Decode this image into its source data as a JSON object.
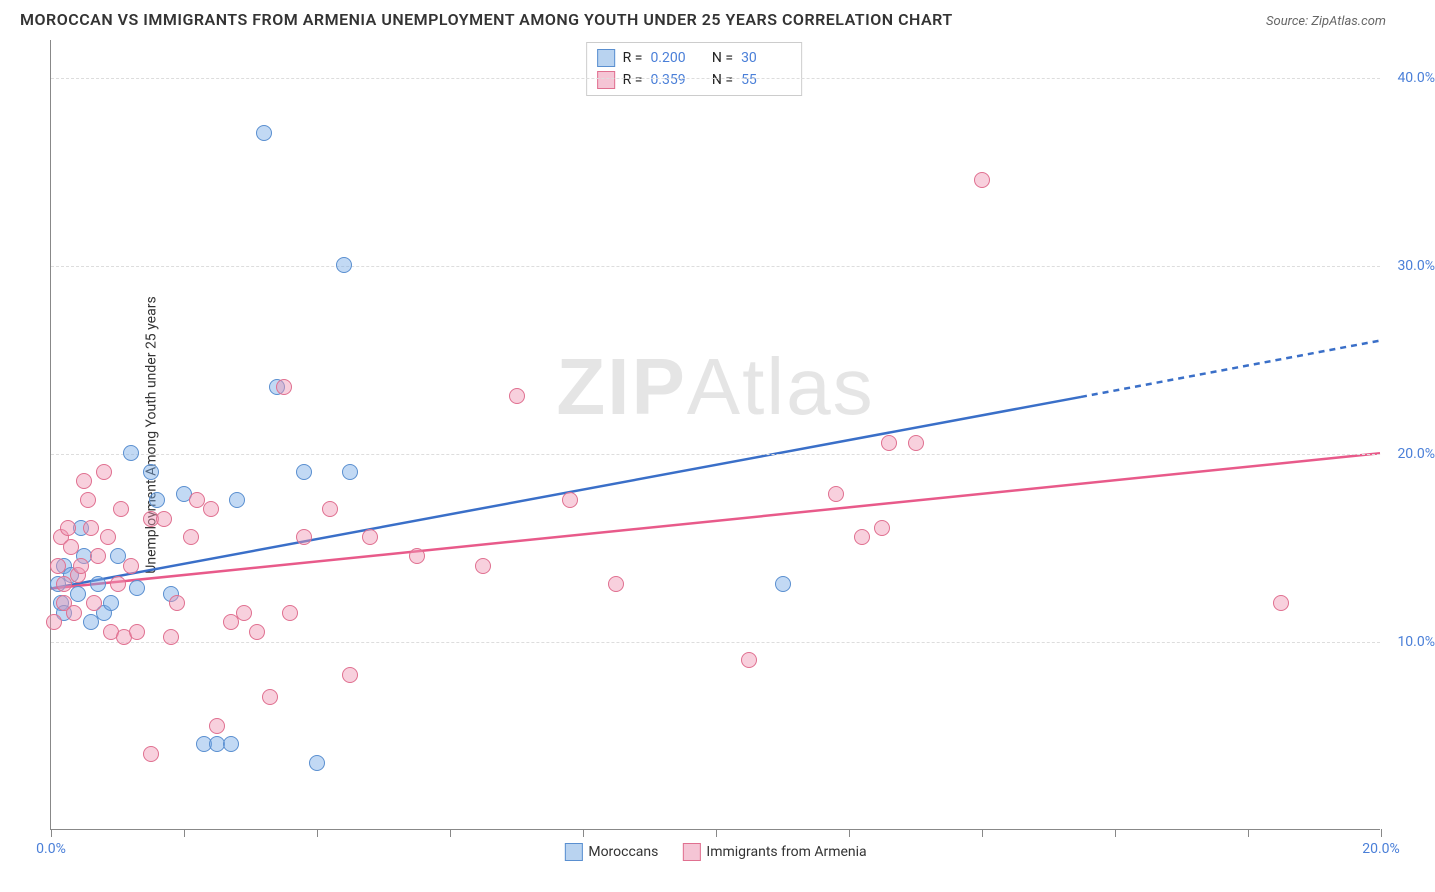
{
  "title": "MOROCCAN VS IMMIGRANTS FROM ARMENIA UNEMPLOYMENT AMONG YOUTH UNDER 25 YEARS CORRELATION CHART",
  "source": "Source: ZipAtlas.com",
  "watermark_bold": "ZIP",
  "watermark_light": "Atlas",
  "chart": {
    "type": "scatter",
    "background_color": "#ffffff",
    "grid_color": "#dddddd",
    "axis_color": "#888888",
    "y_label": "Unemployment Among Youth under 25 years",
    "label_fontsize": 14,
    "title_fontsize": 16,
    "tick_color": "#4a7fd8",
    "xlim": [
      0,
      20
    ],
    "ylim": [
      0,
      42
    ],
    "x_ticks": [
      0,
      2,
      4,
      6,
      8,
      10,
      12,
      14,
      16,
      18,
      20
    ],
    "x_tick_labels": {
      "0": "0.0%",
      "20": "20.0%"
    },
    "y_grid_positions": [
      10,
      20,
      30,
      40
    ],
    "y_tick_labels": {
      "10": "10.0%",
      "20": "20.0%",
      "30": "30.0%",
      "40": "40.0%"
    },
    "marker_radius": 8,
    "series": [
      {
        "name": "Moroccans",
        "color_fill": "rgba(120, 170, 230, 0.45)",
        "color_stroke": "#5a8fd0",
        "swatch_fill": "#b9d3f0",
        "swatch_border": "#5a8fd0",
        "line_color": "#3a6fc8",
        "R": "0.200",
        "N": "30",
        "trend": {
          "x1": 0,
          "y1": 12.8,
          "x2_solid": 15.5,
          "y2_solid": 23.0,
          "x2_dash": 20,
          "y2_dash": 26.0
        },
        "points": [
          [
            0.1,
            13.0
          ],
          [
            0.15,
            12.0
          ],
          [
            0.2,
            14.0
          ],
          [
            0.2,
            11.5
          ],
          [
            0.3,
            13.5
          ],
          [
            0.4,
            12.5
          ],
          [
            0.45,
            16.0
          ],
          [
            0.5,
            14.5
          ],
          [
            0.6,
            11.0
          ],
          [
            0.7,
            13.0
          ],
          [
            0.8,
            11.5
          ],
          [
            0.9,
            12.0
          ],
          [
            1.0,
            14.5
          ],
          [
            1.2,
            20.0
          ],
          [
            1.3,
            12.8
          ],
          [
            1.5,
            19.0
          ],
          [
            1.6,
            17.5
          ],
          [
            1.8,
            12.5
          ],
          [
            2.0,
            17.8
          ],
          [
            2.3,
            4.5
          ],
          [
            2.5,
            4.5
          ],
          [
            2.7,
            4.5
          ],
          [
            2.8,
            17.5
          ],
          [
            3.2,
            37.0
          ],
          [
            3.4,
            23.5
          ],
          [
            3.8,
            19.0
          ],
          [
            4.0,
            3.5
          ],
          [
            4.4,
            30.0
          ],
          [
            4.5,
            19.0
          ],
          [
            11.0,
            13.0
          ]
        ]
      },
      {
        "name": "Immigrants from Armenia",
        "color_fill": "rgba(240, 150, 180, 0.45)",
        "color_stroke": "#e07090",
        "swatch_fill": "#f5c5d5",
        "swatch_border": "#e07090",
        "line_color": "#e85a8a",
        "R": "0.359",
        "N": "55",
        "trend": {
          "x1": 0,
          "y1": 12.8,
          "x2_solid": 20,
          "y2_solid": 20.0,
          "x2_dash": 20,
          "y2_dash": 20.0
        },
        "points": [
          [
            0.05,
            11.0
          ],
          [
            0.1,
            14.0
          ],
          [
            0.15,
            15.5
          ],
          [
            0.2,
            13.0
          ],
          [
            0.2,
            12.0
          ],
          [
            0.25,
            16.0
          ],
          [
            0.3,
            15.0
          ],
          [
            0.35,
            11.5
          ],
          [
            0.4,
            13.5
          ],
          [
            0.45,
            14.0
          ],
          [
            0.5,
            18.5
          ],
          [
            0.55,
            17.5
          ],
          [
            0.6,
            16.0
          ],
          [
            0.65,
            12.0
          ],
          [
            0.7,
            14.5
          ],
          [
            0.8,
            19.0
          ],
          [
            0.85,
            15.5
          ],
          [
            0.9,
            10.5
          ],
          [
            1.0,
            13.0
          ],
          [
            1.05,
            17.0
          ],
          [
            1.1,
            10.2
          ],
          [
            1.2,
            14.0
          ],
          [
            1.3,
            10.5
          ],
          [
            1.5,
            16.5
          ],
          [
            1.5,
            4.0
          ],
          [
            1.7,
            16.5
          ],
          [
            1.8,
            10.2
          ],
          [
            1.9,
            12.0
          ],
          [
            2.1,
            15.5
          ],
          [
            2.2,
            17.5
          ],
          [
            2.4,
            17.0
          ],
          [
            2.5,
            5.5
          ],
          [
            2.7,
            11.0
          ],
          [
            2.9,
            11.5
          ],
          [
            3.1,
            10.5
          ],
          [
            3.3,
            7.0
          ],
          [
            3.5,
            23.5
          ],
          [
            3.6,
            11.5
          ],
          [
            3.8,
            15.5
          ],
          [
            4.2,
            17.0
          ],
          [
            4.5,
            8.2
          ],
          [
            4.8,
            15.5
          ],
          [
            5.5,
            14.5
          ],
          [
            7.0,
            23.0
          ],
          [
            7.8,
            17.5
          ],
          [
            8.5,
            13.0
          ],
          [
            10.5,
            9.0
          ],
          [
            11.8,
            17.8
          ],
          [
            12.2,
            15.5
          ],
          [
            12.5,
            16.0
          ],
          [
            12.6,
            20.5
          ],
          [
            13.0,
            20.5
          ],
          [
            14.0,
            34.5
          ],
          [
            18.5,
            12.0
          ],
          [
            6.5,
            14.0
          ]
        ]
      }
    ],
    "legend_bottom": [
      {
        "label": "Moroccans",
        "series": 0
      },
      {
        "label": "Immigrants from Armenia",
        "series": 1
      }
    ]
  }
}
